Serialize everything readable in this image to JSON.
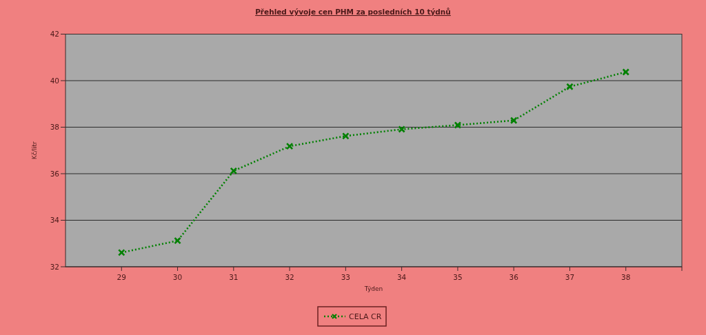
{
  "chart_data": {
    "type": "line",
    "title": "Přehled vývoje cen PHM za posledních 10 týdnů",
    "xlabel": "Týden",
    "ylabel": "Kč/litr",
    "x": [
      29,
      30,
      31,
      32,
      33,
      34,
      35,
      36,
      37,
      38
    ],
    "xlim": [
      28,
      39
    ],
    "xticks": [
      29,
      30,
      31,
      32,
      33,
      34,
      35,
      36,
      37,
      38,
      {
        "value": 39,
        "label": null
      }
    ],
    "ylim": [
      32,
      42
    ],
    "yticks": [
      32,
      34,
      36,
      38,
      40,
      42
    ],
    "series": [
      {
        "name": "CELA CR",
        "color": "#008000",
        "values": [
          32.61,
          33.12,
          36.12,
          37.18,
          37.62,
          37.91,
          38.09,
          38.29,
          39.74,
          40.37
        ]
      }
    ],
    "grid": "y",
    "legend": "bottom",
    "marker": "cross",
    "line_style": "dotted"
  }
}
